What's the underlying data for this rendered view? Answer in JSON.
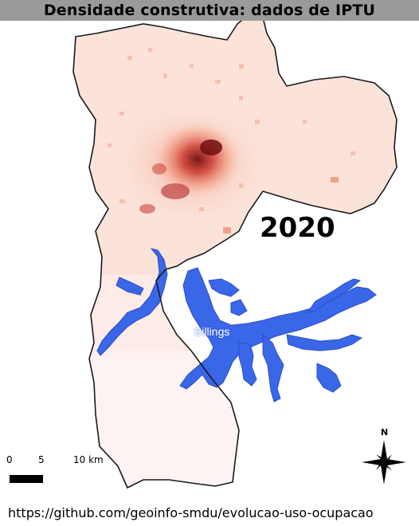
{
  "title": "Densidade construtiva: dados de IPTU",
  "year": "2020",
  "reservoir": {
    "name": "Billings",
    "color": "#3a66e8"
  },
  "scale": {
    "ticks": [
      "0",
      "5",
      "10 km"
    ]
  },
  "north": {
    "label": "N",
    "icon": "compass-rose-icon"
  },
  "source": "https://github.com/geoinfo-smdu/evolucao-uso-ocupacao",
  "colors": {
    "base": "#fbe3da",
    "low": "#f7c6b4",
    "mid": "#ee8a6e",
    "high": "#c9342a",
    "very_high": "#6f0f12",
    "south_pale": "#fdeeee",
    "water": "#3a66e8",
    "outline": "#1a1a1a"
  }
}
